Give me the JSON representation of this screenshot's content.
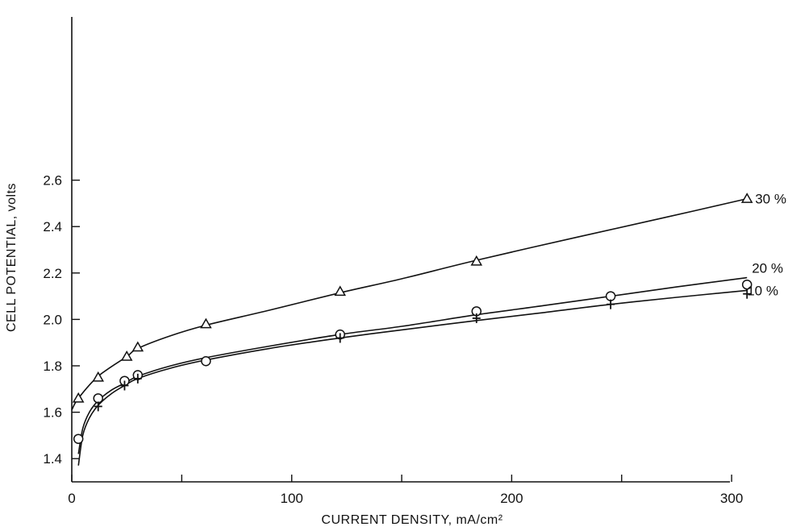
{
  "chart_data": {
    "type": "line",
    "title": "",
    "xlabel": "CURRENT DENSITY, mA/cm²",
    "ylabel": "CELL POTENTIAL, volts",
    "xlim": [
      0,
      310
    ],
    "ylim": [
      1.3,
      2.6
    ],
    "xticks": [
      0,
      50,
      100,
      150,
      200,
      250,
      300
    ],
    "xtick_labels": [
      "0",
      "",
      "100",
      "",
      "200",
      "",
      "300"
    ],
    "yticks": [
      1.4,
      1.6,
      1.8,
      2.0,
      2.2,
      2.4,
      2.6
    ],
    "ytick_labels": [
      "1.4",
      "1.6",
      "1.8",
      "2.0",
      "2.2",
      "2.4",
      "2.6"
    ],
    "grid": false,
    "legend": "inline series labels at right end of curves",
    "series": [
      {
        "name": "30 %",
        "marker": "triangle",
        "points": [
          [
            3,
            1.66
          ],
          [
            12,
            1.75
          ],
          [
            25,
            1.84
          ],
          [
            30,
            1.88
          ],
          [
            61,
            1.98
          ],
          [
            122,
            2.12
          ],
          [
            184,
            2.25
          ],
          [
            307,
            2.52
          ]
        ],
        "curve": [
          [
            0,
            1.61
          ],
          [
            3,
            1.66
          ],
          [
            12,
            1.755
          ],
          [
            25,
            1.84
          ],
          [
            30,
            1.875
          ],
          [
            45,
            1.93
          ],
          [
            61,
            1.975
          ],
          [
            90,
            2.04
          ],
          [
            122,
            2.115
          ],
          [
            150,
            2.175
          ],
          [
            184,
            2.255
          ],
          [
            230,
            2.355
          ],
          [
            270,
            2.44
          ],
          [
            307,
            2.52
          ]
        ]
      },
      {
        "name": "20 %",
        "marker": "circle",
        "points": [
          [
            3,
            1.485
          ],
          [
            12,
            1.66
          ],
          [
            24,
            1.735
          ],
          [
            30,
            1.76
          ],
          [
            61,
            1.82
          ],
          [
            122,
            1.935
          ],
          [
            184,
            2.035
          ],
          [
            245,
            2.1
          ],
          [
            307,
            2.15
          ]
        ],
        "curve": [
          [
            3,
            1.42
          ],
          [
            5,
            1.53
          ],
          [
            8,
            1.6
          ],
          [
            12,
            1.65
          ],
          [
            18,
            1.695
          ],
          [
            24,
            1.725
          ],
          [
            30,
            1.755
          ],
          [
            45,
            1.8
          ],
          [
            61,
            1.835
          ],
          [
            90,
            1.885
          ],
          [
            122,
            1.935
          ],
          [
            150,
            1.97
          ],
          [
            184,
            2.02
          ],
          [
            215,
            2.06
          ],
          [
            245,
            2.1
          ],
          [
            275,
            2.14
          ],
          [
            307,
            2.18
          ]
        ]
      },
      {
        "name": "10 %",
        "marker": "plus",
        "points": [
          [
            12,
            1.625
          ],
          [
            24,
            1.715
          ],
          [
            30,
            1.745
          ],
          [
            122,
            1.92
          ],
          [
            184,
            2.005
          ],
          [
            245,
            2.065
          ],
          [
            307,
            2.11
          ]
        ],
        "curve": [
          [
            3,
            1.37
          ],
          [
            5,
            1.5
          ],
          [
            8,
            1.575
          ],
          [
            12,
            1.63
          ],
          [
            18,
            1.68
          ],
          [
            24,
            1.715
          ],
          [
            30,
            1.745
          ],
          [
            45,
            1.79
          ],
          [
            61,
            1.825
          ],
          [
            90,
            1.875
          ],
          [
            122,
            1.92
          ],
          [
            150,
            1.955
          ],
          [
            184,
            1.995
          ],
          [
            215,
            2.03
          ],
          [
            245,
            2.065
          ],
          [
            275,
            2.095
          ],
          [
            307,
            2.125
          ]
        ]
      }
    ]
  }
}
